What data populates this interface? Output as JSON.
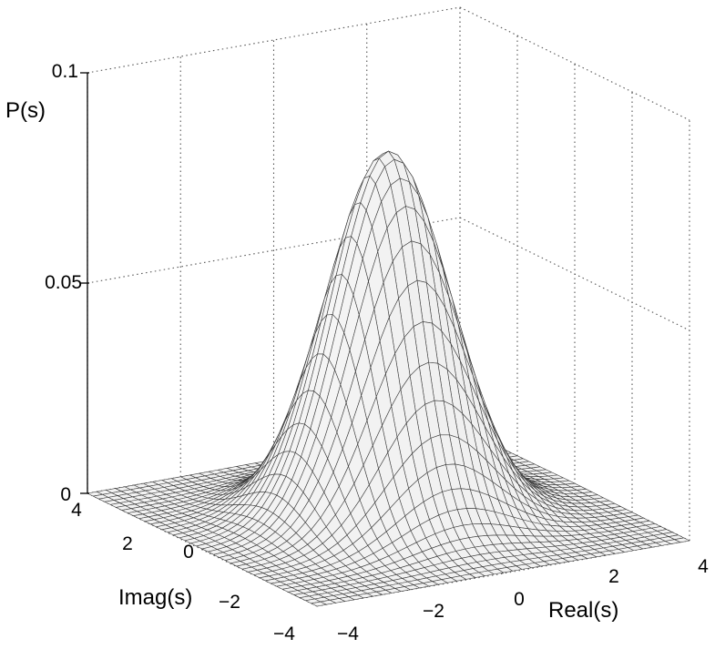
{
  "chart_data": {
    "type": "surface",
    "title": "",
    "surface_function": "P(s) = 0.087 · exp(-(Re(s)² + Im(s)²) / (2 · 1.15²))",
    "grid": true,
    "colors": {
      "surface_fill": "#f2f2f2",
      "mesh_line": "#3a3a3a",
      "grid_line": "#555555"
    },
    "x_axis": {
      "label": "Real(s)",
      "range": [
        -4,
        4
      ],
      "ticks": [
        -4,
        -2,
        0,
        2,
        4
      ],
      "tick_labels": [
        "−4",
        "−2",
        "0",
        "2",
        "4"
      ]
    },
    "y_axis": {
      "label": "Imag(s)",
      "range": [
        -4,
        4
      ],
      "ticks": [
        -4,
        -2,
        0,
        2,
        4
      ],
      "tick_labels": [
        "−4",
        "−2",
        "0",
        "2",
        "4"
      ]
    },
    "z_axis": {
      "label": "P(s)",
      "range": [
        0,
        0.1
      ],
      "ticks": [
        0,
        0.05,
        0.1
      ],
      "tick_labels": [
        "0",
        "0.05",
        "0.1"
      ]
    },
    "peak": {
      "real": 0,
      "imag": 0,
      "value": 0.087
    },
    "mesh_resolution": 40
  }
}
